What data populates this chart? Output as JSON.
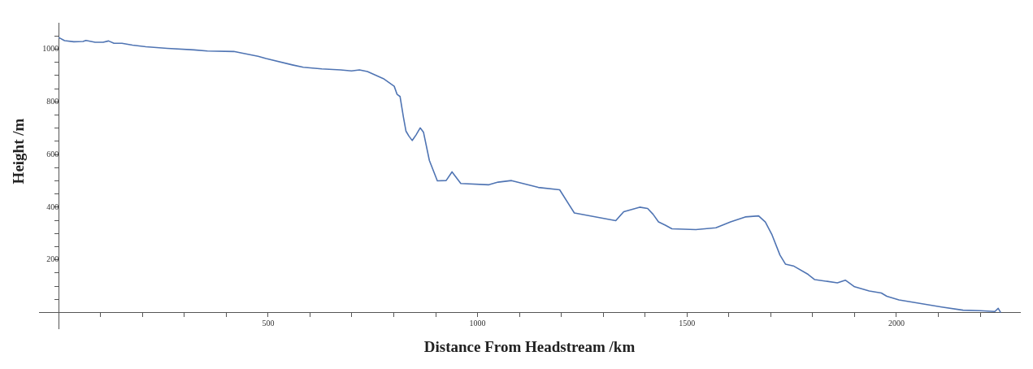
{
  "chart_data": {
    "type": "line",
    "xlabel": "Distance From Headstream /km",
    "ylabel": "Height /m",
    "xlim": [
      -47,
      2295
    ],
    "ylim": [
      -60,
      1100
    ],
    "xticks": [
      {
        "value": 100,
        "label": null
      },
      {
        "value": 200,
        "label": null
      },
      {
        "value": 300,
        "label": null
      },
      {
        "value": 400,
        "label": null
      },
      500,
      {
        "value": 600,
        "label": null
      },
      {
        "value": 700,
        "label": null
      },
      {
        "value": 800,
        "label": null
      },
      {
        "value": 900,
        "label": null
      },
      1000,
      {
        "value": 1100,
        "label": null
      },
      {
        "value": 1200,
        "label": null
      },
      {
        "value": 1300,
        "label": null
      },
      {
        "value": 1400,
        "label": null
      },
      1500,
      {
        "value": 1600,
        "label": null
      },
      {
        "value": 1700,
        "label": null
      },
      {
        "value": 1800,
        "label": null
      },
      {
        "value": 1900,
        "label": null
      },
      2000,
      {
        "value": 2100,
        "label": null
      },
      {
        "value": 2200,
        "label": null
      }
    ],
    "yticks": [
      {
        "value": 50,
        "label": null
      },
      {
        "value": 100,
        "label": null
      },
      {
        "value": 150,
        "label": null
      },
      200,
      {
        "value": 250,
        "label": null
      },
      {
        "value": 300,
        "label": null
      },
      {
        "value": 350,
        "label": null
      },
      400,
      {
        "value": 450,
        "label": null
      },
      {
        "value": 500,
        "label": null
      },
      {
        "value": 550,
        "label": null
      },
      600,
      {
        "value": 650,
        "label": null
      },
      {
        "value": 700,
        "label": null
      },
      {
        "value": 750,
        "label": null
      },
      800,
      {
        "value": 850,
        "label": null
      },
      {
        "value": 900,
        "label": null
      },
      {
        "value": 950,
        "label": null
      },
      1000,
      {
        "value": 1050,
        "label": null
      }
    ],
    "grid": false,
    "legend": false,
    "marker": "none",
    "line_style": "solid",
    "series": [
      {
        "color": "#4f74b3",
        "x": [
          0,
          14,
          36,
          58,
          65,
          87,
          106,
          119,
          132,
          151,
          176,
          208,
          259,
          323,
          355,
          418,
          437,
          476,
          495,
          558,
          584,
          628,
          673,
          699,
          718,
          737,
          775,
          801,
          808,
          815,
          823,
          829,
          836,
          844,
          853,
          863,
          871,
          885,
          904,
          925,
          939,
          960,
          1027,
          1049,
          1081,
          1145,
          1196,
          1231,
          1330,
          1349,
          1387,
          1406,
          1419,
          1432,
          1448,
          1464,
          1521,
          1569,
          1604,
          1639,
          1671,
          1687,
          1703,
          1722,
          1735,
          1754,
          1789,
          1805,
          1859,
          1878,
          1900,
          1935,
          1964,
          1977,
          2006,
          2044,
          2108,
          2159,
          2200,
          2235,
          2243,
          2249
        ],
        "values": [
          1044,
          1032,
          1028,
          1029,
          1033,
          1026,
          1026,
          1031,
          1022,
          1022,
          1015,
          1009,
          1003,
          997,
          993,
          991,
          985,
          973,
          964,
          940,
          931,
          925,
          921,
          917,
          921,
          915,
          888,
          859,
          828,
          820,
          742,
          689,
          670,
          653,
          674,
          701,
          684,
          577,
          500,
          501,
          534,
          490,
          485,
          495,
          501,
          475,
          466,
          378,
          349,
          383,
          400,
          395,
          373,
          344,
          332,
          318,
          315,
          322,
          344,
          363,
          367,
          344,
          295,
          218,
          184,
          177,
          145,
          125,
          113,
          123,
          98,
          82,
          74,
          62,
          48,
          38,
          21,
          9,
          7,
          4,
          16,
          0
        ]
      }
    ]
  }
}
